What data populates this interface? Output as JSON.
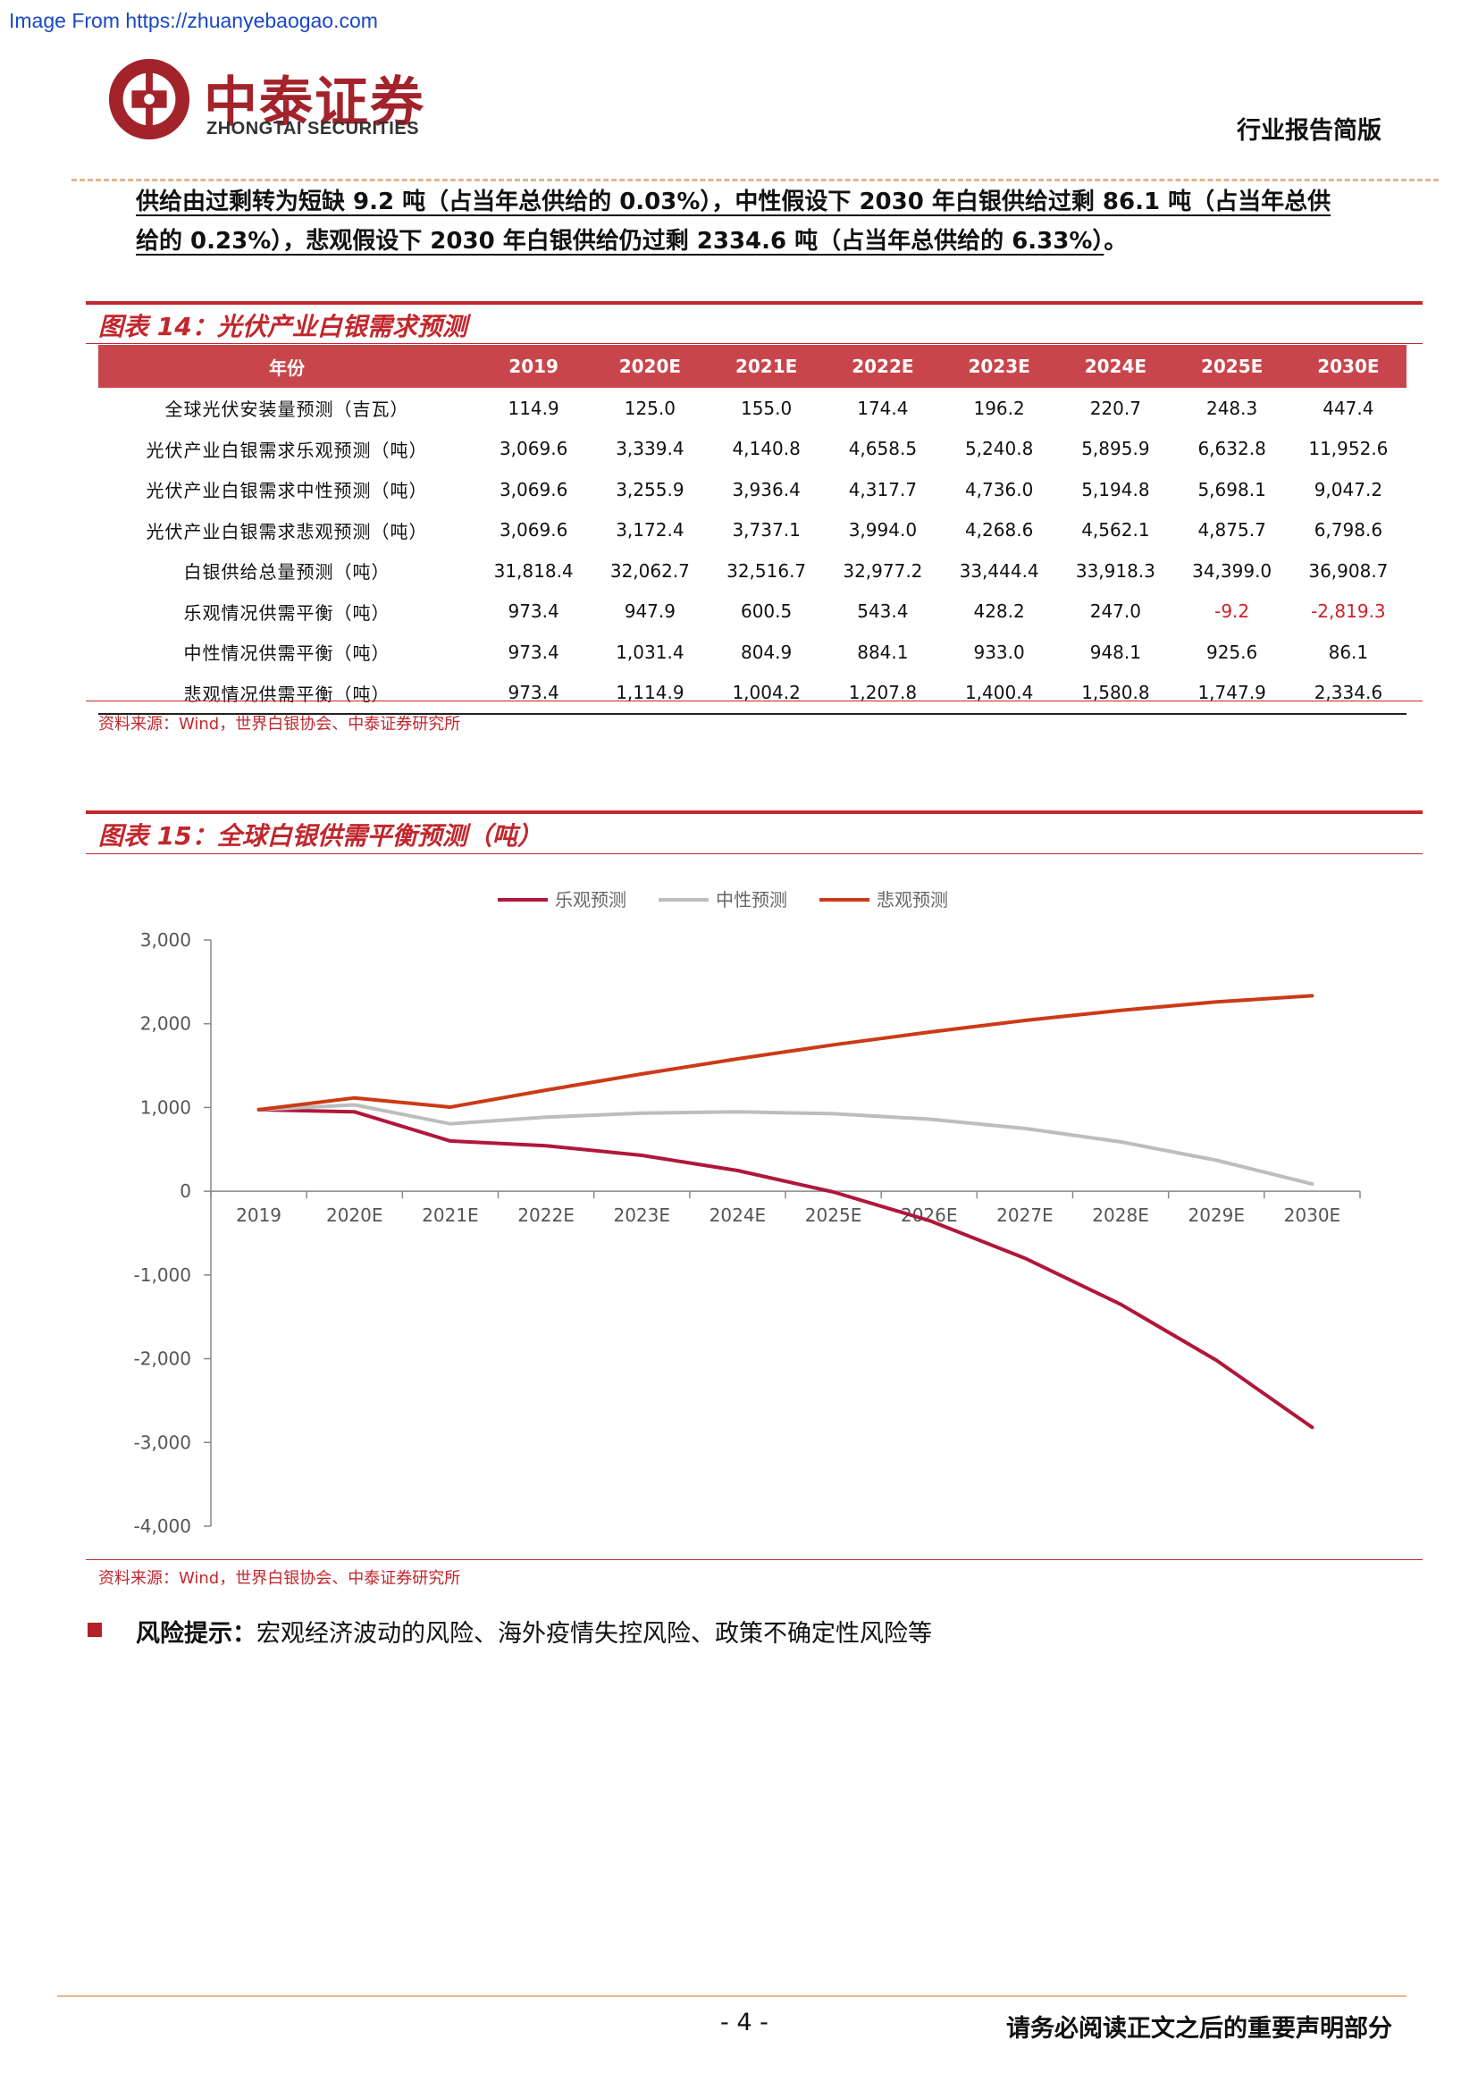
{
  "watermark": "Image From https://zhuanyebaogao.com",
  "header": {
    "logo_cn": "中泰证券",
    "logo_en": "ZHONGTAI SECURITIES",
    "report_type": "行业报告简版"
  },
  "intro": {
    "line1": "供给由过剩转为短缺 9.2 吨（占当年总供给的 0.03%），中性假设下 2030 年白银供给过剩 86.1 吨（占当年总供",
    "line2": "给的 0.23%），悲观假设下 2030 年白银供给仍过剩 2334.6 吨（占当年总供给的 6.33%）",
    "line2_end": "。"
  },
  "figure14": {
    "title": "图表 14：光伏产业白银需求预测",
    "columns": [
      "年份",
      "2019",
      "2020E",
      "2021E",
      "2022E",
      "2023E",
      "2024E",
      "2025E",
      "2030E"
    ],
    "rows": [
      {
        "label": "全球光伏安装量预测（吉瓦）",
        "values": [
          "114.9",
          "125.0",
          "155.0",
          "174.4",
          "196.2",
          "220.7",
          "248.3",
          "447.4"
        ]
      },
      {
        "label": "光伏产业白银需求乐观预测（吨）",
        "values": [
          "3,069.6",
          "3,339.4",
          "4,140.8",
          "4,658.5",
          "5,240.8",
          "5,895.9",
          "6,632.8",
          "11,952.6"
        ]
      },
      {
        "label": "光伏产业白银需求中性预测（吨）",
        "values": [
          "3,069.6",
          "3,255.9",
          "3,936.4",
          "4,317.7",
          "4,736.0",
          "5,194.8",
          "5,698.1",
          "9,047.2"
        ]
      },
      {
        "label": "光伏产业白银需求悲观预测（吨）",
        "values": [
          "3,069.6",
          "3,172.4",
          "3,737.1",
          "3,994.0",
          "4,268.6",
          "4,562.1",
          "4,875.7",
          "6,798.6"
        ]
      },
      {
        "label": "白银供给总量预测（吨）",
        "values": [
          "31,818.4",
          "32,062.7",
          "32,516.7",
          "32,977.2",
          "33,444.4",
          "33,918.3",
          "34,399.0",
          "36,908.7"
        ]
      },
      {
        "label": "乐观情况供需平衡（吨）",
        "values": [
          "973.4",
          "947.9",
          "600.5",
          "543.4",
          "428.2",
          "247.0",
          "-9.2",
          "-2,819.3"
        ]
      },
      {
        "label": "中性情况供需平衡（吨）",
        "values": [
          "973.4",
          "1,031.4",
          "804.9",
          "884.1",
          "933.0",
          "948.1",
          "925.6",
          "86.1"
        ]
      },
      {
        "label": "悲观情况供需平衡（吨）",
        "values": [
          "973.4",
          "1,114.9",
          "1,004.2",
          "1,207.8",
          "1,400.4",
          "1,580.8",
          "1,747.9",
          "2,334.6"
        ]
      }
    ],
    "negative_color": "#d0202a",
    "source": "资料来源：Wind，世界白银协会、中泰证券研究所"
  },
  "figure15": {
    "title": "图表 15：全球白银供需平衡预测（吨）",
    "source": "资料来源：Wind，世界白银协会、中泰证券研究所"
  },
  "chart_data": {
    "type": "line",
    "title": "",
    "xlabel": "",
    "ylabel": "",
    "categories": [
      "2019",
      "2020E",
      "2021E",
      "2022E",
      "2023E",
      "2024E",
      "2025E",
      "2026E",
      "2027E",
      "2028E",
      "2029E",
      "2030E"
    ],
    "ylim": [
      -4000,
      3000
    ],
    "yticks": [
      3000,
      2000,
      1000,
      0,
      -1000,
      -2000,
      -3000,
      -4000
    ],
    "ytick_labels": [
      "3,000",
      "2,000",
      "1,000",
      "0",
      "-1,000",
      "-2,000",
      "-3,000",
      "-4,000"
    ],
    "grid": false,
    "legend_position": "top",
    "series": [
      {
        "name": "乐观预测",
        "color": "#b0173a",
        "values": [
          973.4,
          947.9,
          600.5,
          543.4,
          428.2,
          247.0,
          -9.2,
          -350,
          -800,
          -1350,
          -2020,
          -2819.3
        ]
      },
      {
        "name": "中性预测",
        "color": "#bdbdbd",
        "values": [
          973.4,
          1031.4,
          804.9,
          884.1,
          933.0,
          948.1,
          925.6,
          860,
          750,
          590,
          370,
          86.1
        ]
      },
      {
        "name": "悲观预测",
        "color": "#cc3a16",
        "values": [
          973.4,
          1114.9,
          1004.2,
          1207.8,
          1400.4,
          1580.8,
          1747.9,
          1900,
          2040,
          2160,
          2260,
          2334.6
        ]
      }
    ]
  },
  "risk": {
    "label": "风险提示：",
    "text": "宏观经济波动的风险、海外疫情失控风险、政策不确定性风险等"
  },
  "footer": {
    "page": "- 4 -",
    "note": "请务必阅读正文之后的重要声明部分"
  }
}
